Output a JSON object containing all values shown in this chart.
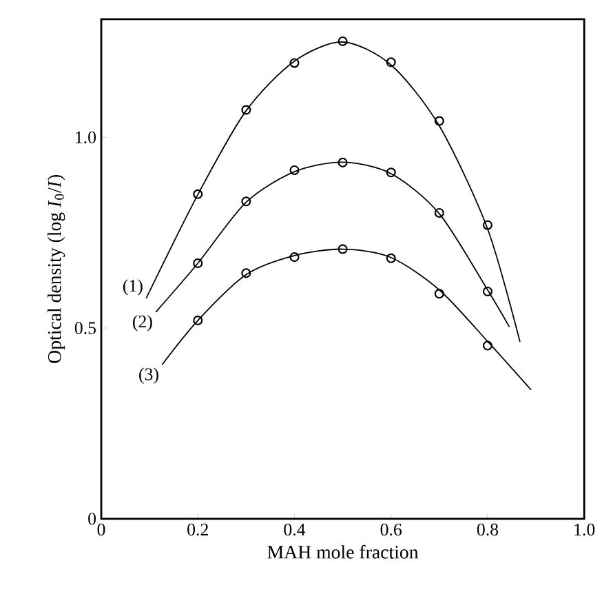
{
  "chart_data": {
    "type": "scatter",
    "xlabel": "MAH mole fraction",
    "ylabel": "Optical density (log *I*$_{0}$/*I*)",
    "xlim": [
      0,
      1.0
    ],
    "ylim": [
      0,
      1.31
    ],
    "xticks": [
      0,
      0.2,
      0.4,
      0.6,
      0.8,
      {
        "value": 1.0,
        "label": "1.0"
      }
    ],
    "yticks": [
      0,
      0.5,
      {
        "value": 1.0,
        "label": "1.0"
      }
    ],
    "grid": false,
    "legend": false,
    "marker": "circle",
    "series": [
      {
        "color": "#000000",
        "x": [
          0.2,
          0.3,
          0.4,
          0.5,
          0.6,
          0.7,
          0.8
        ],
        "values": [
          0.851,
          1.072,
          1.195,
          1.252,
          1.197,
          1.043,
          0.77
        ]
      },
      {
        "color": "#000000",
        "x": [
          0.2,
          0.3,
          0.4,
          0.5,
          0.6,
          0.7,
          0.8
        ],
        "values": [
          0.67,
          0.832,
          0.914,
          0.934,
          0.908,
          0.802,
          0.596
        ]
      },
      {
        "color": "#000000",
        "x": [
          0.2,
          0.3,
          0.4,
          0.5,
          0.6,
          0.7,
          0.8
        ],
        "values": [
          0.52,
          0.644,
          0.686,
          0.707,
          0.683,
          0.59,
          0.454
        ]
      },
      {
        "type": "line",
        "name": "(1)",
        "color": "#000000",
        "marker": "none",
        "line_style": "solid",
        "x": [
          0.093,
          0.2,
          0.3,
          0.4,
          0.5,
          0.6,
          0.7,
          0.8,
          0.867
        ],
        "values": [
          0.578,
          0.85,
          1.07,
          1.2,
          1.25,
          1.19,
          1.03,
          0.76,
          0.464
        ]
      },
      {
        "type": "line",
        "name": "(2)",
        "color": "#000000",
        "marker": "none",
        "line_style": "solid",
        "x": [
          0.113,
          0.2,
          0.3,
          0.4,
          0.5,
          0.6,
          0.7,
          0.8,
          0.845
        ],
        "values": [
          0.542,
          0.67,
          0.83,
          0.91,
          0.935,
          0.905,
          0.8,
          0.6,
          0.503
        ]
      },
      {
        "type": "line",
        "name": "(3)",
        "color": "#000000",
        "marker": "none",
        "line_style": "solid",
        "x": [
          0.126,
          0.2,
          0.3,
          0.4,
          0.5,
          0.6,
          0.7,
          0.8,
          0.89
        ],
        "values": [
          0.404,
          0.52,
          0.64,
          0.69,
          0.707,
          0.685,
          0.6,
          0.465,
          0.338
        ]
      }
    ]
  }
}
